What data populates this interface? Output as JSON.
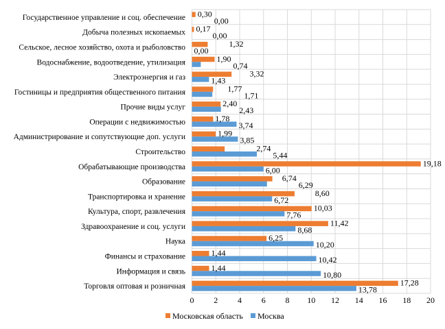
{
  "chart_data": {
    "type": "bar",
    "orientation": "horizontal",
    "title": "",
    "xlabel": "",
    "ylabel": "",
    "xlim": [
      0,
      20
    ],
    "x_ticks": [
      "0",
      "2",
      "4",
      "6",
      "8",
      "10",
      "12",
      "14",
      "16",
      "18",
      "20"
    ],
    "grid": true,
    "legend_position": "bottom",
    "categories": [
      "Государственное управление и соц. обеспечение",
      "Добыча полезных ископаемых",
      "Сельское, лесное хозяйство, охота и рыболовство",
      "Водоснабжение, водоотведение, утилизация",
      "Электроэнергия и газ",
      "Гостиницы и предприятия общественного питания",
      "Прочие виды услуг",
      "Операции с недвижимостью",
      "Администрирование и сопутствующие доп. услуги",
      "Строительство",
      "Обрабатывающие производства",
      "Образование",
      "Транспортировка и хранение",
      "Культура, спорт, развлечения",
      "Здравоохранение и соц. услуги",
      "Наука",
      "Финансы и страхование",
      "Информация и связь",
      "Торговля оптовая и розничная"
    ],
    "series": [
      {
        "name": "Московская область",
        "color": "#ED7D31",
        "values": [
          0.3,
          0.17,
          1.32,
          1.9,
          3.32,
          1.77,
          2.4,
          1.78,
          1.99,
          2.74,
          19.18,
          6.74,
          8.6,
          10.03,
          11.42,
          6.25,
          1.44,
          1.44,
          17.28
        ],
        "labels": [
          "0,30",
          "0,17",
          "1,32",
          "1,90",
          "3,32",
          "1,77",
          "2,40",
          "1,78",
          "1,99",
          "2,74",
          "19,18",
          "6,74",
          "8,60",
          "10,03",
          "11,42",
          "6,25",
          "1,44",
          "1,44",
          "17,28"
        ]
      },
      {
        "name": "Москва",
        "color": "#5B9BD5",
        "values": [
          0.0,
          0.0,
          0.0,
          0.74,
          1.43,
          1.71,
          2.43,
          3.74,
          3.85,
          5.44,
          6.0,
          6.29,
          6.72,
          7.76,
          8.68,
          10.2,
          10.42,
          10.8,
          13.78
        ],
        "labels": [
          "0,00",
          "0,00",
          "0,00",
          "0,74",
          "1,43",
          "1,71",
          "2,43",
          "3,74",
          "3,85",
          "5,44",
          "6,00",
          "6,29",
          "6,72",
          "7,76",
          "8,68",
          "10,20",
          "10,42",
          "10,80",
          "13,78"
        ]
      }
    ]
  }
}
